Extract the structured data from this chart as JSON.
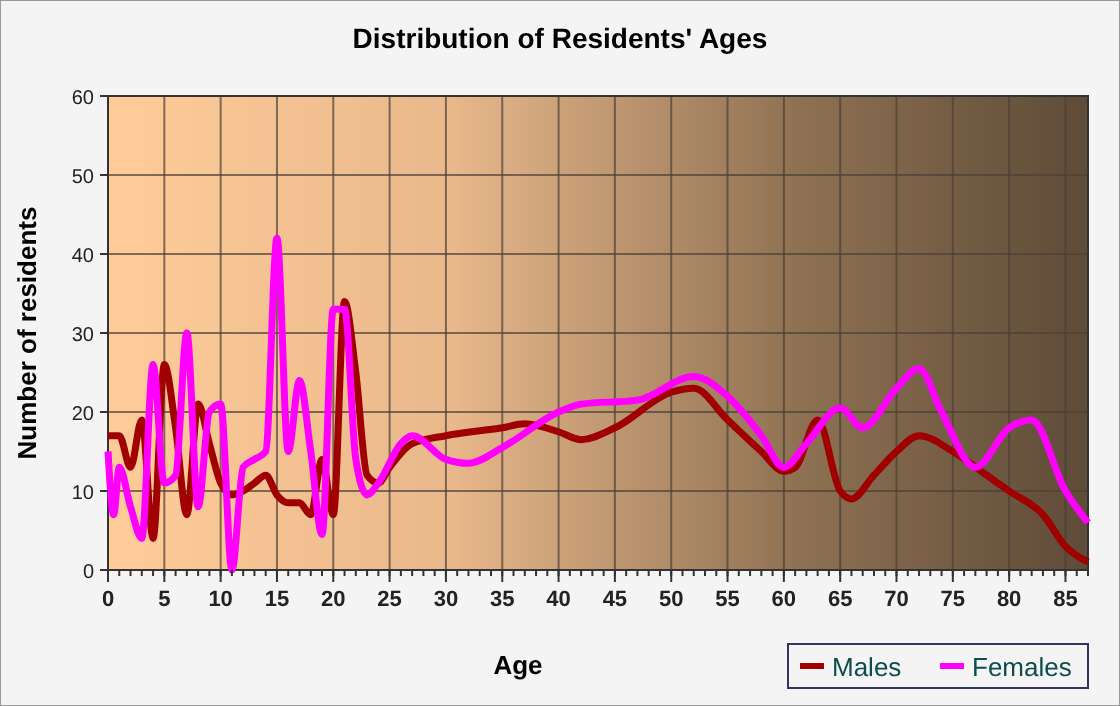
{
  "chart_data": {
    "type": "line",
    "title": "Distribution of Residents' Ages",
    "xlabel": "Age",
    "ylabel": "Number of residents",
    "xlim": [
      0,
      87
    ],
    "xticks": [
      0,
      5,
      10,
      15,
      20,
      25,
      30,
      35,
      40,
      45,
      50,
      55,
      60,
      65,
      70,
      75,
      80,
      85
    ],
    "ylim": [
      0,
      60
    ],
    "yticks": [
      0,
      10,
      20,
      30,
      40,
      50,
      60
    ],
    "grid": true,
    "legend": "bottom right",
    "series": [
      {
        "name": "Males",
        "color": "#a00000",
        "x": [
          0,
          1,
          2,
          3,
          4,
          5,
          6,
          7,
          8,
          9,
          10,
          11,
          12,
          13,
          14,
          15,
          16,
          17,
          18,
          19,
          20,
          21,
          22,
          23,
          24,
          25,
          27,
          30,
          35,
          37,
          40,
          42,
          45,
          50,
          52,
          55,
          58,
          60,
          61,
          63,
          65,
          66,
          68,
          70,
          72,
          75,
          78,
          80,
          83,
          85,
          87
        ],
        "values": [
          17,
          17,
          13,
          19,
          4,
          26,
          18,
          7,
          21,
          16,
          11,
          9.5,
          10,
          11,
          12,
          9.5,
          8.5,
          8.5,
          7,
          14,
          7,
          34,
          25,
          12,
          11,
          13,
          16,
          17,
          18,
          18.5,
          17.5,
          16.5,
          18,
          22.5,
          23,
          19,
          15,
          12.5,
          13,
          19,
          10,
          9,
          12,
          15,
          17,
          15,
          12,
          10,
          7,
          3,
          1
        ]
      },
      {
        "name": "Females",
        "color": "#ff00ff",
        "x": [
          0,
          0.5,
          1,
          2,
          3,
          4,
          5,
          6,
          7,
          8,
          9,
          10,
          11,
          12,
          13,
          14,
          15,
          16,
          17,
          18,
          19,
          20,
          21,
          22,
          23,
          24,
          26,
          27,
          30,
          32,
          35,
          40,
          42,
          47,
          52,
          55,
          58,
          60,
          62,
          65,
          67,
          70,
          72,
          74,
          77,
          80,
          82,
          85,
          87
        ],
        "values": [
          15,
          7,
          13,
          8,
          4,
          26,
          11,
          12,
          30,
          8,
          20,
          21,
          0,
          13,
          14,
          15,
          42,
          15,
          24,
          15,
          4.5,
          33,
          33,
          14,
          9.5,
          11,
          16,
          17,
          14,
          13.5,
          15.5,
          20,
          21,
          21.5,
          24.5,
          22,
          17,
          13,
          16,
          20.5,
          18,
          23,
          25.5,
          20,
          13,
          18,
          19,
          10,
          6
        ]
      }
    ]
  }
}
